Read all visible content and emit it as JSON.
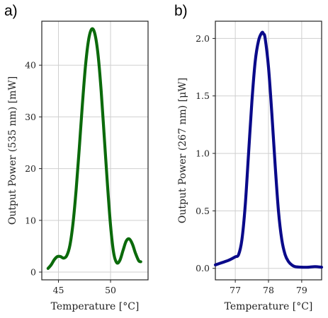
{
  "chart_data": [
    {
      "panel": "a)",
      "type": "line",
      "xlabel": "Temperature [°C]",
      "ylabel": "Output Power (535 nm) [mW]",
      "xlim": [
        43.4,
        53.6
      ],
      "ylim": [
        -1.5,
        48.5
      ],
      "xticks": [
        45,
        50
      ],
      "yticks": [
        0,
        10,
        20,
        30,
        40
      ],
      "grid": true,
      "color": "#0b6a0b",
      "series": [
        {
          "x": [
            44.0,
            44.3,
            44.6,
            44.9,
            45.2,
            45.5,
            45.8,
            46.1,
            46.4,
            46.7,
            47.0,
            47.3,
            47.6,
            47.9,
            48.2,
            48.5,
            48.8,
            49.1,
            49.4,
            49.7,
            50.0,
            50.3,
            50.6,
            50.9,
            51.2,
            51.5,
            51.8,
            52.1,
            52.4,
            52.7,
            52.9
          ],
          "y": [
            0.7,
            1.4,
            2.4,
            3.0,
            3.0,
            2.7,
            3.2,
            5.2,
            9.5,
            16.0,
            24.0,
            32.5,
            40.0,
            45.0,
            47.0,
            46.0,
            42.0,
            35.0,
            26.0,
            17.0,
            9.0,
            3.7,
            1.8,
            2.3,
            4.2,
            6.0,
            6.4,
            5.4,
            3.6,
            2.2,
            2.0
          ]
        }
      ]
    },
    {
      "panel": "b)",
      "type": "line",
      "xlabel": "Temperature [°C]",
      "ylabel": "Output Power (267 nm) [μW]",
      "xlim": [
        76.4,
        79.6
      ],
      "ylim": [
        -0.1,
        2.15
      ],
      "xticks": [
        77,
        78,
        79
      ],
      "yticks": [
        "0.0",
        "0.5",
        "1.0",
        "1.5",
        "2.0"
      ],
      "grid": true,
      "color": "#0a0a8a",
      "series": [
        {
          "x": [
            76.4,
            76.6,
            76.8,
            77.0,
            77.1,
            77.2,
            77.3,
            77.4,
            77.5,
            77.6,
            77.7,
            77.8,
            77.85,
            77.9,
            78.0,
            78.1,
            78.2,
            78.3,
            78.4,
            78.5,
            78.6,
            78.7,
            78.8,
            79.0,
            79.2,
            79.4,
            79.6
          ],
          "y": [
            0.03,
            0.05,
            0.07,
            0.1,
            0.12,
            0.25,
            0.55,
            1.0,
            1.45,
            1.8,
            1.98,
            2.05,
            2.04,
            2.0,
            1.75,
            1.35,
            0.9,
            0.5,
            0.25,
            0.12,
            0.06,
            0.03,
            0.015,
            0.01,
            0.01,
            0.015,
            0.01
          ]
        }
      ]
    }
  ]
}
